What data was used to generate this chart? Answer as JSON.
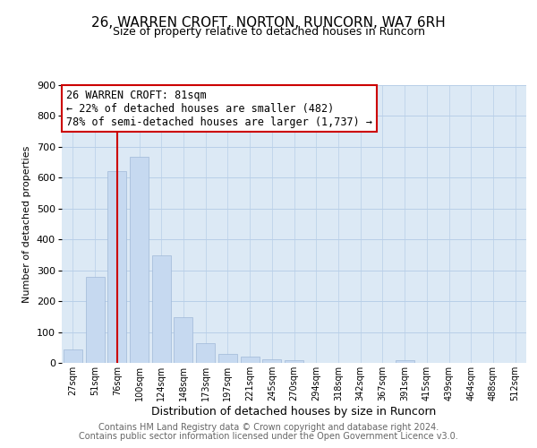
{
  "title": "26, WARREN CROFT, NORTON, RUNCORN, WA7 6RH",
  "subtitle": "Size of property relative to detached houses in Runcorn",
  "xlabel": "Distribution of detached houses by size in Runcorn",
  "ylabel": "Number of detached properties",
  "bar_labels": [
    "27sqm",
    "51sqm",
    "76sqm",
    "100sqm",
    "124sqm",
    "148sqm",
    "173sqm",
    "197sqm",
    "221sqm",
    "245sqm",
    "270sqm",
    "294sqm",
    "318sqm",
    "342sqm",
    "367sqm",
    "391sqm",
    "415sqm",
    "439sqm",
    "464sqm",
    "488sqm",
    "512sqm"
  ],
  "bar_values": [
    45,
    280,
    622,
    668,
    347,
    148,
    65,
    30,
    20,
    12,
    10,
    0,
    0,
    0,
    0,
    8,
    0,
    0,
    0,
    0,
    0
  ],
  "bar_color": "#c6d9f0",
  "bar_edge_color": "#a0b8d8",
  "redline_index": 2,
  "annotation_title": "26 WARREN CROFT: 81sqm",
  "annotation_line1": "← 22% of detached houses are smaller (482)",
  "annotation_line2": "78% of semi-detached houses are larger (1,737) →",
  "annotation_box_color": "#ffffff",
  "annotation_box_edge": "#cc0000",
  "redline_color": "#cc0000",
  "ylim": [
    0,
    900
  ],
  "yticks": [
    0,
    100,
    200,
    300,
    400,
    500,
    600,
    700,
    800,
    900
  ],
  "footer1": "Contains HM Land Registry data © Crown copyright and database right 2024.",
  "footer2": "Contains public sector information licensed under the Open Government Licence v3.0.",
  "bg_color": "#ffffff",
  "plot_bg_color": "#dce9f5",
  "grid_color": "#b8cfe8",
  "title_fontsize": 11,
  "subtitle_fontsize": 9,
  "footer_fontsize": 7,
  "ylabel_fontsize": 8,
  "xlabel_fontsize": 9
}
